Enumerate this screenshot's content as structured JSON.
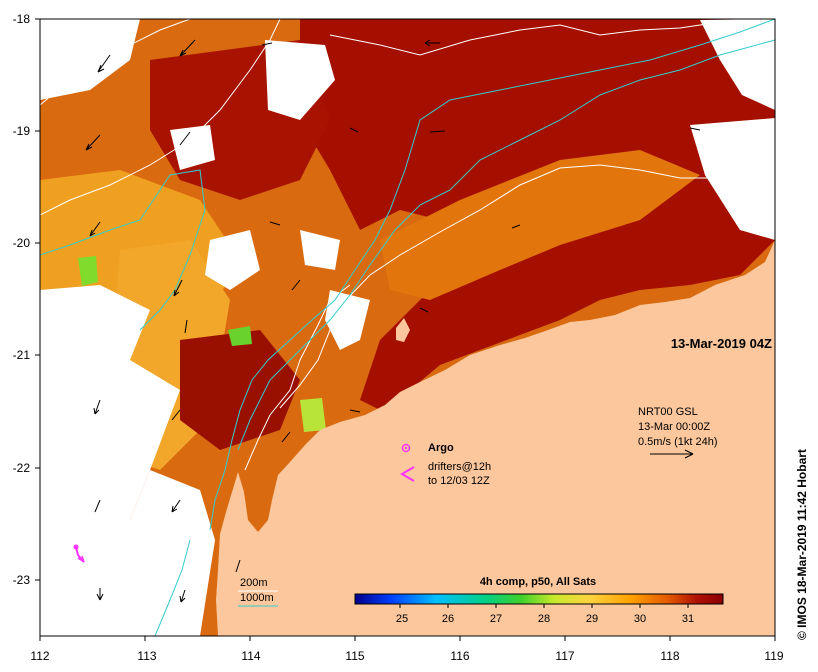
{
  "map": {
    "region": "",
    "lon_range": [
      112,
      119
    ],
    "lat_range": [
      -23.5,
      -18
    ],
    "lon_ticks": [
      "112",
      "113",
      "114",
      "115",
      "116",
      "117",
      "118",
      "119"
    ],
    "lat_ticks": [
      "-18",
      "-19",
      "-20",
      "-21",
      "-22",
      "-23"
    ],
    "date_stamp": "13-Mar-2019 04Z",
    "credit": "© IMOS 18-Mar-2019 11:42 Hobart"
  },
  "legend": {
    "argo_label": "Argo",
    "drifters_label_1": "drifters@12h",
    "drifters_label_2": "to 12/03 12Z",
    "current_label_1": "NRT00 GSL",
    "current_label_2": "13-Mar 00:00Z",
    "current_label_3": "0.5m/s (1kt 24h)",
    "isobath_200": "200m",
    "isobath_1000": "1000m",
    "colors": {
      "argo": "#ff33ff",
      "drifter": "#ff33ff",
      "isobath_200": "#ffffff",
      "isobath_1000": "#33cccc",
      "land": "#fcc79c",
      "cloud": "#ffffff"
    }
  },
  "colorbar": {
    "title": "4h comp, p50, All Sats",
    "tick_labels": [
      "25",
      "26",
      "27",
      "28",
      "29",
      "30",
      "31"
    ],
    "range": [
      24.0,
      31.6
    ],
    "colors": [
      "#00008b",
      "#0040ff",
      "#00bfff",
      "#00d08a",
      "#3ecf2c",
      "#c6ea2c",
      "#ffd23f",
      "#ffa000",
      "#e45a00",
      "#b01000",
      "#8b0000"
    ]
  }
}
